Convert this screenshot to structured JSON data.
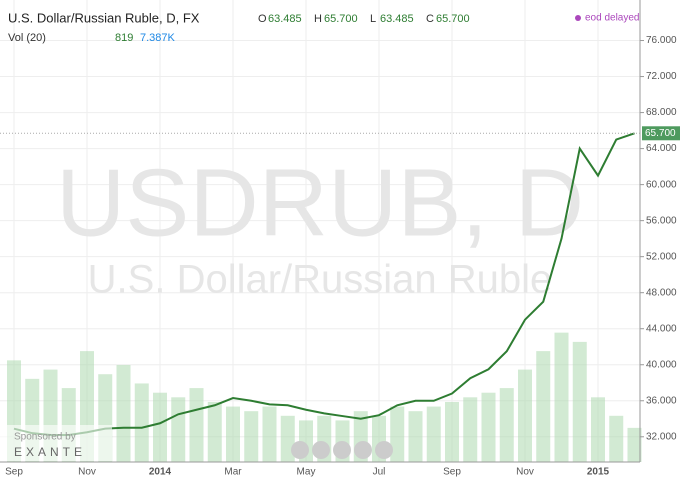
{
  "chart_data": {
    "type": "line",
    "title": "U.S. Dollar/Russian Ruble, D, FX",
    "ohlc": [
      {
        "label": "O",
        "value": "63.485"
      },
      {
        "label": "H",
        "value": "65.700"
      },
      {
        "label": "L",
        "value": "63.485"
      },
      {
        "label": "C",
        "value": "65.700"
      }
    ],
    "volume_title": "Vol (20)",
    "volume_readout": [
      "819",
      "7.387K"
    ],
    "status": "eod delayed",
    "watermark": [
      "USDRUB, D",
      "U.S. Dollar/Russian Ruble"
    ],
    "sponsor": [
      "Sponsored by",
      "EXANTE"
    ],
    "categories": [
      "Sep",
      null,
      null,
      null,
      "Nov",
      null,
      null,
      null,
      "2014",
      null,
      null,
      null,
      "Mar",
      null,
      null,
      null,
      "May",
      null,
      null,
      null,
      "Jul",
      null,
      null,
      null,
      "Sep",
      null,
      null,
      null,
      "Nov",
      null,
      null,
      null,
      "2015",
      null,
      null
    ],
    "series": [
      {
        "name": "USDRUB",
        "color": "#2e7d32",
        "values": [
          32.9,
          32.4,
          32.2,
          32.2,
          32.5,
          32.9,
          33.0,
          33.0,
          33.5,
          34.5,
          35.0,
          35.5,
          36.3,
          36.0,
          35.6,
          35.5,
          35.0,
          34.6,
          34.3,
          34.0,
          34.4,
          35.5,
          36.0,
          36.0,
          36.8,
          38.5,
          39.5,
          41.5,
          45.0,
          47.0,
          54.0,
          64.0,
          61.0,
          65.0,
          65.7
        ]
      },
      {
        "name": "Vol",
        "color": "#a5d6a7",
        "axis": "y2",
        "values": [
          22,
          18,
          20,
          16,
          24,
          19,
          21,
          17,
          15,
          14,
          16,
          13,
          12,
          11,
          12,
          10,
          9,
          10,
          9,
          11,
          10,
          12,
          11,
          12,
          13,
          14,
          15,
          16,
          20,
          24,
          28,
          26,
          14,
          10,
          7.387
        ]
      }
    ],
    "ylim": [
      29.2,
      80.5
    ],
    "yticks": [
      {
        "value": 32,
        "label": "32.000"
      },
      {
        "value": 36,
        "label": "36.000"
      },
      {
        "value": 40,
        "label": "40.000"
      },
      {
        "value": 44,
        "label": "44.000"
      },
      {
        "value": 48,
        "label": "48.000"
      },
      {
        "value": 52,
        "label": "52.000"
      },
      {
        "value": 56,
        "label": "56.000"
      },
      {
        "value": 60,
        "label": "60.000"
      },
      {
        "value": 64,
        "label": "64.000"
      },
      {
        "value": 68,
        "label": "68.000"
      },
      {
        "value": 72,
        "label": "72.000"
      },
      {
        "value": 76,
        "label": "76.000"
      }
    ],
    "y2lim": [
      0,
      100
    ],
    "grid": true
  }
}
